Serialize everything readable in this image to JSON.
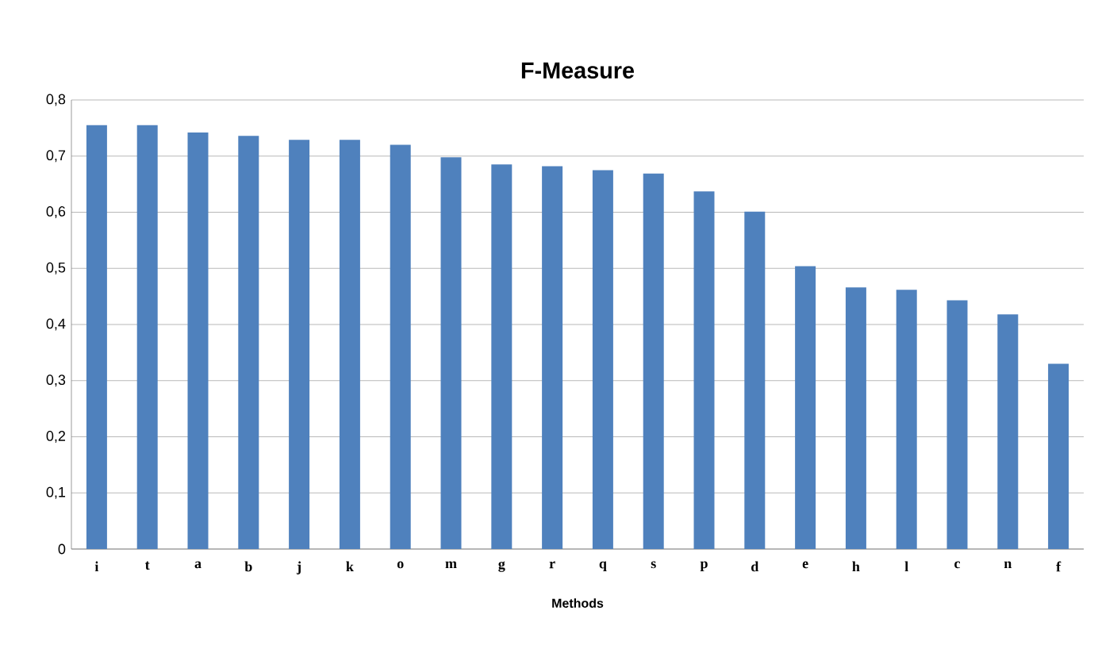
{
  "chart_data": {
    "type": "bar",
    "title": "F-Measure",
    "xlabel": "Methods",
    "categories": [
      "i",
      "t",
      "a",
      "b",
      "j",
      "k",
      "o",
      "m",
      "g",
      "r",
      "q",
      "s",
      "p",
      "d",
      "e",
      "h",
      "l",
      "c",
      "n",
      "f"
    ],
    "values": [
      0.755,
      0.755,
      0.742,
      0.736,
      0.729,
      0.729,
      0.72,
      0.698,
      0.685,
      0.682,
      0.675,
      0.669,
      0.637,
      0.601,
      0.504,
      0.466,
      0.462,
      0.443,
      0.418,
      0.33
    ],
    "color": "#4f81bd",
    "ylim": [
      0,
      0.8
    ],
    "yticks": [
      {
        "value": 0,
        "label": "0"
      },
      {
        "value": 0.1,
        "label": "0,1"
      },
      {
        "value": 0.2,
        "label": "0,2"
      },
      {
        "value": 0.3,
        "label": "0,3"
      },
      {
        "value": 0.4,
        "label": "0,4"
      },
      {
        "value": 0.5,
        "label": "0,5"
      },
      {
        "value": 0.6,
        "label": "0,6"
      },
      {
        "value": 0.7,
        "label": "0,7"
      },
      {
        "value": 0.8,
        "label": "0,8"
      }
    ],
    "grid": "y"
  }
}
